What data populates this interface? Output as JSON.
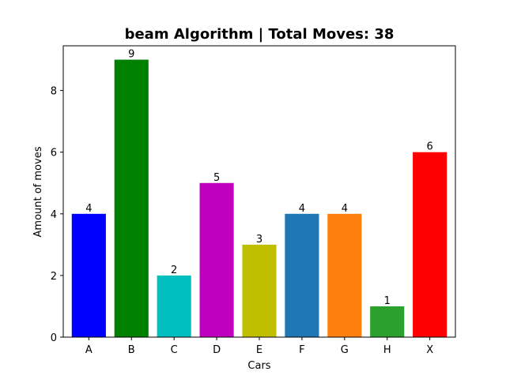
{
  "chart_data": {
    "type": "bar",
    "title": "beam Algorithm | Total Moves: 38",
    "xlabel": "Cars",
    "ylabel": "Amount of moves",
    "categories": [
      "A",
      "B",
      "C",
      "D",
      "E",
      "F",
      "G",
      "H",
      "X"
    ],
    "values": [
      4,
      9,
      2,
      5,
      3,
      4,
      4,
      1,
      6
    ],
    "colors": [
      "#0000ff",
      "#008000",
      "#00bfbf",
      "#bf00bf",
      "#bfbf00",
      "#1f77b4",
      "#ff7f0e",
      "#2ca02c",
      "#ff0000"
    ],
    "ylim": [
      0,
      9.45
    ],
    "yticks": [
      0,
      2,
      4,
      6,
      8
    ],
    "grid": false,
    "legend": "none"
  }
}
